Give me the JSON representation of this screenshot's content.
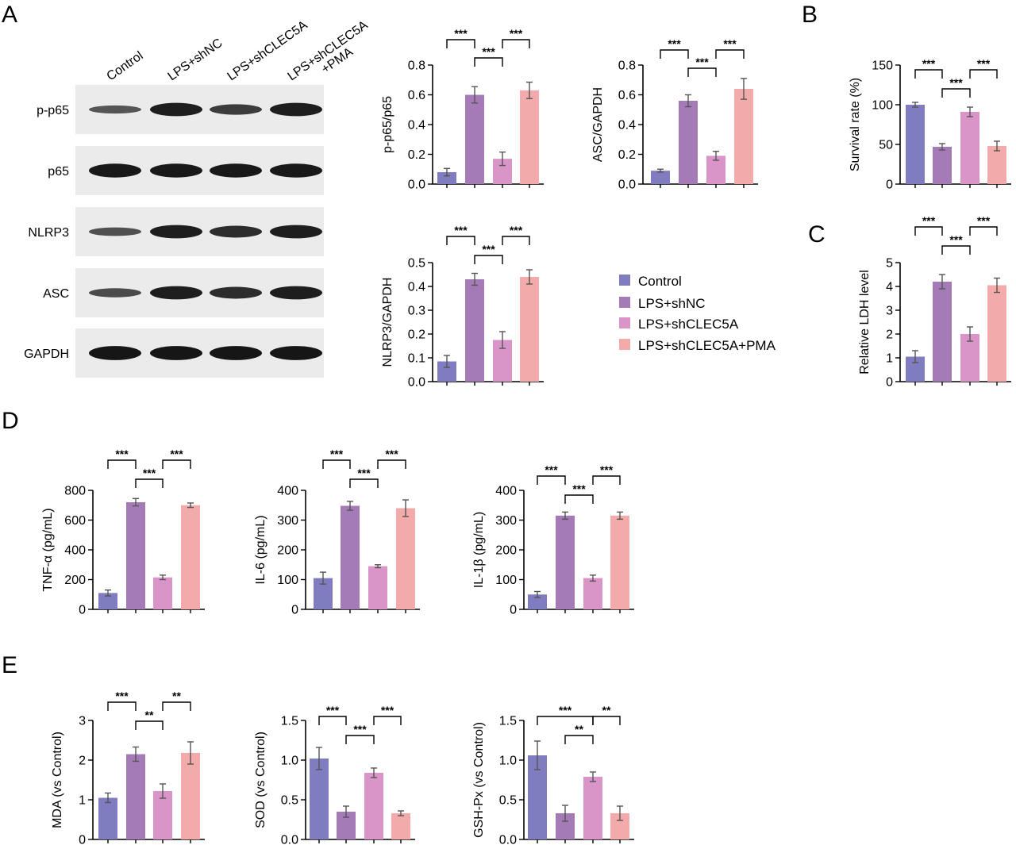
{
  "colors": {
    "control": "#7f7dbf",
    "lps_shnc": "#a47bb6",
    "lps_shclec5a": "#d994c8",
    "lps_shclec5a_pma": "#f2aaaa",
    "blot_bg": "#ebebeb",
    "band": "#1d1d1d"
  },
  "panels": {
    "A": "A",
    "B": "B",
    "C": "C",
    "D": "D",
    "E": "E"
  },
  "legend": [
    {
      "label": "Control",
      "color": "#7f7dbf"
    },
    {
      "label": "LPS+shNC",
      "color": "#a47bb6"
    },
    {
      "label": "LPS+shCLEC5A",
      "color": "#d994c8"
    },
    {
      "label": "LPS+shCLEC5A+PMA",
      "color": "#f2aaaa"
    }
  ],
  "western_blot": {
    "lanes": [
      "Control",
      "LPS+shNC",
      "LPS+shCLEC5A",
      "LPS+shCLEC5A\n+PMA"
    ],
    "rows": [
      {
        "label": "p-p65",
        "intensity": [
          0.35,
          0.9,
          0.6,
          0.9
        ]
      },
      {
        "label": "p65",
        "intensity": [
          0.95,
          0.95,
          0.95,
          0.95
        ]
      },
      {
        "label": "NLRP3",
        "intensity": [
          0.4,
          0.9,
          0.75,
          0.9
        ]
      },
      {
        "label": "ASC",
        "intensity": [
          0.45,
          0.9,
          0.75,
          0.9
        ]
      },
      {
        "label": "GAPDH",
        "intensity": [
          0.98,
          0.98,
          0.98,
          0.98
        ]
      }
    ]
  },
  "chart_data": [
    {
      "type": "bar",
      "id": "pp65",
      "categories": [
        "Control",
        "LPS+shNC",
        "LPS+shCLEC5A",
        "LPS+shCLEC5A+PMA"
      ],
      "values": [
        0.08,
        0.6,
        0.17,
        0.63
      ],
      "errors": [
        0.025,
        0.055,
        0.045,
        0.055
      ],
      "ylabel": "p-p65/p65",
      "ylim": [
        0,
        0.8
      ],
      "yticks": [
        "0.0",
        "0.2",
        "0.4",
        "0.6",
        "0.8"
      ],
      "significance": [
        {
          "from": 0,
          "to": 1,
          "level": 2,
          "label": "***"
        },
        {
          "from": 1,
          "to": 2,
          "level": 1,
          "label": "***"
        },
        {
          "from": 2,
          "to": 3,
          "level": 2,
          "label": "***"
        }
      ]
    },
    {
      "type": "bar",
      "id": "asc",
      "categories": [
        "Control",
        "LPS+shNC",
        "LPS+shCLEC5A",
        "LPS+shCLEC5A+PMA"
      ],
      "values": [
        0.09,
        0.56,
        0.19,
        0.64
      ],
      "errors": [
        0.01,
        0.04,
        0.03,
        0.07
      ],
      "ylabel": "ASC/GAPDH",
      "ylim": [
        0,
        0.8
      ],
      "yticks": [
        "0.0",
        "0.2",
        "0.4",
        "0.6",
        "0.8"
      ],
      "significance": [
        {
          "from": 0,
          "to": 1,
          "level": 2,
          "label": "***"
        },
        {
          "from": 1,
          "to": 2,
          "level": 1,
          "label": "***"
        },
        {
          "from": 2,
          "to": 3,
          "level": 2,
          "label": "***"
        }
      ]
    },
    {
      "type": "bar",
      "id": "nlrp3",
      "categories": [
        "Control",
        "LPS+shNC",
        "LPS+shCLEC5A",
        "LPS+shCLEC5A+PMA"
      ],
      "values": [
        0.085,
        0.43,
        0.175,
        0.44
      ],
      "errors": [
        0.025,
        0.025,
        0.035,
        0.03
      ],
      "ylabel": "NLRP3/GAPDH",
      "ylim": [
        0,
        0.5
      ],
      "yticks": [
        "0.0",
        "0.1",
        "0.2",
        "0.3",
        "0.4",
        "0.5"
      ],
      "significance": [
        {
          "from": 0,
          "to": 1,
          "level": 2,
          "label": "***"
        },
        {
          "from": 1,
          "to": 2,
          "level": 1,
          "label": "***"
        },
        {
          "from": 2,
          "to": 3,
          "level": 2,
          "label": "***"
        }
      ]
    },
    {
      "type": "bar",
      "id": "survival",
      "categories": [
        "Control",
        "LPS+shNC",
        "LPS+shCLEC5A",
        "LPS+shCLEC5A+PMA"
      ],
      "values": [
        100,
        47,
        91,
        48
      ],
      "errors": [
        3,
        4,
        6,
        6
      ],
      "ylabel": "Survival rate (%)",
      "ylim": [
        0,
        150
      ],
      "yticks": [
        "0",
        "50",
        "100",
        "150"
      ],
      "significance": [
        {
          "from": 0,
          "to": 1,
          "level": 2,
          "label": "***"
        },
        {
          "from": 1,
          "to": 2,
          "level": 1,
          "label": "***"
        },
        {
          "from": 2,
          "to": 3,
          "level": 2,
          "label": "***"
        }
      ]
    },
    {
      "type": "bar",
      "id": "ldh",
      "categories": [
        "Control",
        "LPS+shNC",
        "LPS+shCLEC5A",
        "LPS+shCLEC5A+PMA"
      ],
      "values": [
        1.05,
        4.2,
        2.0,
        4.05
      ],
      "errors": [
        0.25,
        0.3,
        0.3,
        0.3
      ],
      "ylabel": "Relative LDH level",
      "ylim": [
        0,
        5
      ],
      "yticks": [
        "0",
        "1",
        "2",
        "3",
        "4",
        "5"
      ],
      "significance": [
        {
          "from": 0,
          "to": 1,
          "level": 2,
          "label": "***"
        },
        {
          "from": 1,
          "to": 2,
          "level": 1,
          "label": "***"
        },
        {
          "from": 2,
          "to": 3,
          "level": 2,
          "label": "***"
        }
      ]
    },
    {
      "type": "bar",
      "id": "tnf",
      "categories": [
        "Control",
        "LPS+shNC",
        "LPS+shCLEC5A",
        "LPS+shCLEC5A+PMA"
      ],
      "values": [
        110,
        720,
        215,
        700
      ],
      "errors": [
        20,
        25,
        15,
        15
      ],
      "ylabel": "TNF-α (pg/mL)",
      "ylim": [
        0,
        800
      ],
      "yticks": [
        "0",
        "200",
        "400",
        "600",
        "800"
      ],
      "significance": [
        {
          "from": 0,
          "to": 1,
          "level": 2,
          "label": "***"
        },
        {
          "from": 1,
          "to": 2,
          "level": 1,
          "label": "***"
        },
        {
          "from": 2,
          "to": 3,
          "level": 2,
          "label": "***"
        }
      ]
    },
    {
      "type": "bar",
      "id": "il6",
      "categories": [
        "Control",
        "LPS+shNC",
        "LPS+shCLEC5A",
        "LPS+shCLEC5A+PMA"
      ],
      "values": [
        105,
        348,
        145,
        340
      ],
      "errors": [
        20,
        15,
        5,
        28
      ],
      "ylabel": "IL-6 (pg/mL)",
      "ylim": [
        0,
        400
      ],
      "yticks": [
        "0",
        "100",
        "200",
        "300",
        "400"
      ],
      "significance": [
        {
          "from": 0,
          "to": 1,
          "level": 2,
          "label": "***"
        },
        {
          "from": 1,
          "to": 2,
          "level": 1,
          "label": "***"
        },
        {
          "from": 2,
          "to": 3,
          "level": 2,
          "label": "***"
        }
      ]
    },
    {
      "type": "bar",
      "id": "il1b",
      "categories": [
        "Control",
        "LPS+shNC",
        "LPS+shCLEC5A",
        "LPS+shCLEC5A+PMA"
      ],
      "values": [
        50,
        315,
        105,
        315
      ],
      "errors": [
        10,
        12,
        10,
        12
      ],
      "ylabel": "IL-1β (pg/mL)",
      "ylim": [
        0,
        400
      ],
      "yticks": [
        "0",
        "100",
        "200",
        "300",
        "400"
      ],
      "significance": [
        {
          "from": 0,
          "to": 1,
          "level": 2,
          "label": "***"
        },
        {
          "from": 1,
          "to": 2,
          "level": 1,
          "label": "***"
        },
        {
          "from": 2,
          "to": 3,
          "level": 2,
          "label": "***"
        }
      ]
    },
    {
      "type": "bar",
      "id": "mda",
      "categories": [
        "Control",
        "LPS+shNC",
        "LPS+shCLEC5A",
        "LPS+shCLEC5A+PMA"
      ],
      "values": [
        1.05,
        2.15,
        1.22,
        2.18
      ],
      "errors": [
        0.12,
        0.18,
        0.18,
        0.28
      ],
      "ylabel": "MDA (vs Control)",
      "ylim": [
        0,
        3
      ],
      "yticks": [
        "0",
        "1",
        "2",
        "3"
      ],
      "significance": [
        {
          "from": 0,
          "to": 1,
          "level": 2,
          "label": "***"
        },
        {
          "from": 1,
          "to": 2,
          "level": 1,
          "label": "**"
        },
        {
          "from": 2,
          "to": 3,
          "level": 2,
          "label": "**"
        }
      ]
    },
    {
      "type": "bar",
      "id": "sod",
      "categories": [
        "Control",
        "LPS+shNC",
        "LPS+shCLEC5A",
        "LPS+shCLEC5A+PMA"
      ],
      "values": [
        1.02,
        0.35,
        0.84,
        0.33
      ],
      "errors": [
        0.14,
        0.07,
        0.06,
        0.03
      ],
      "ylabel": "SOD (vs Control)",
      "ylim": [
        0,
        1.5
      ],
      "yticks": [
        "0.0",
        "0.5",
        "1.0",
        "1.5"
      ],
      "significance": [
        {
          "from": 0,
          "to": 1,
          "level": 2,
          "label": "***"
        },
        {
          "from": 1,
          "to": 2,
          "level": 1,
          "label": "***"
        },
        {
          "from": 2,
          "to": 3,
          "level": 2,
          "label": "***"
        }
      ]
    },
    {
      "type": "bar",
      "id": "gsh",
      "categories": [
        "Control",
        "LPS+shNC",
        "LPS+shCLEC5A",
        "LPS+shCLEC5A+PMA"
      ],
      "values": [
        1.06,
        0.33,
        0.79,
        0.33
      ],
      "errors": [
        0.18,
        0.1,
        0.06,
        0.09
      ],
      "ylabel": "GSH-Px (vs Control)",
      "ylim": [
        0,
        1.5
      ],
      "yticks": [
        "0.0",
        "0.5",
        "1.0",
        "1.5"
      ],
      "significance": [
        {
          "from": 0,
          "to": 2,
          "level": 2,
          "label": "***"
        },
        {
          "from": 1,
          "to": 2,
          "level": 1,
          "label": "**"
        },
        {
          "from": 2,
          "to": 3,
          "level": 2,
          "label": "**"
        }
      ]
    }
  ]
}
